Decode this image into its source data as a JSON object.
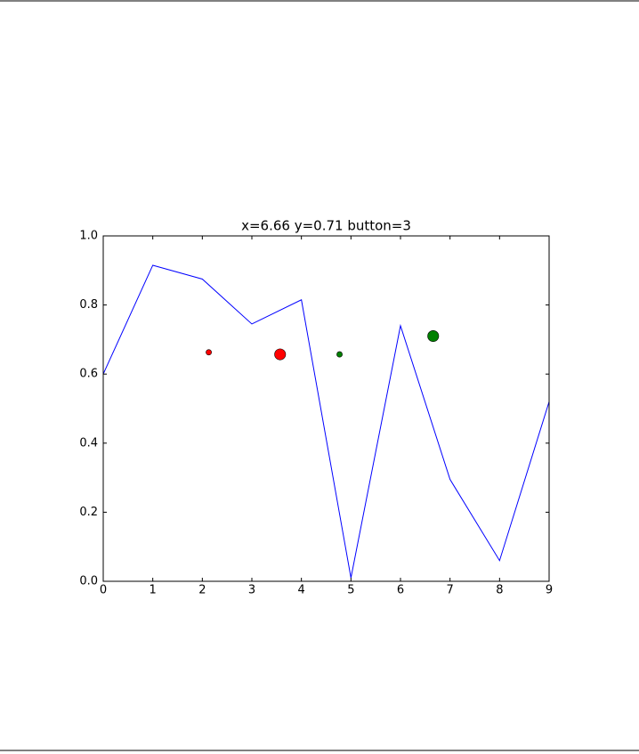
{
  "chart_data": {
    "type": "line",
    "title": "x=6.66 y=0.71 button=3",
    "x": [
      0,
      1,
      2,
      3,
      4,
      5,
      6,
      7,
      8,
      9
    ],
    "series": [
      {
        "color": "#0000ff",
        "values": [
          0.6,
          0.915,
          0.875,
          0.745,
          0.815,
          0.01,
          0.74,
          0.295,
          0.06,
          0.52
        ]
      }
    ],
    "points": [
      {
        "color": "#ff0000",
        "x": [
          2.13,
          3.57
        ],
        "y": [
          0.663,
          0.657
        ],
        "sizes": [
          15,
          60
        ]
      },
      {
        "color": "#008000",
        "x": [
          4.77,
          6.66
        ],
        "y": [
          0.657,
          0.71
        ],
        "sizes": [
          15,
          60
        ]
      }
    ],
    "xlim": [
      0,
      9
    ],
    "ylim": [
      0,
      1
    ],
    "xticks": [
      0,
      1,
      2,
      3,
      4,
      5,
      6,
      7,
      8,
      9
    ],
    "yticks": [
      {
        "value": 0,
        "label": "0.0"
      },
      0.2,
      0.4,
      0.6,
      0.8,
      {
        "value": 1,
        "label": "1.0"
      }
    ]
  }
}
